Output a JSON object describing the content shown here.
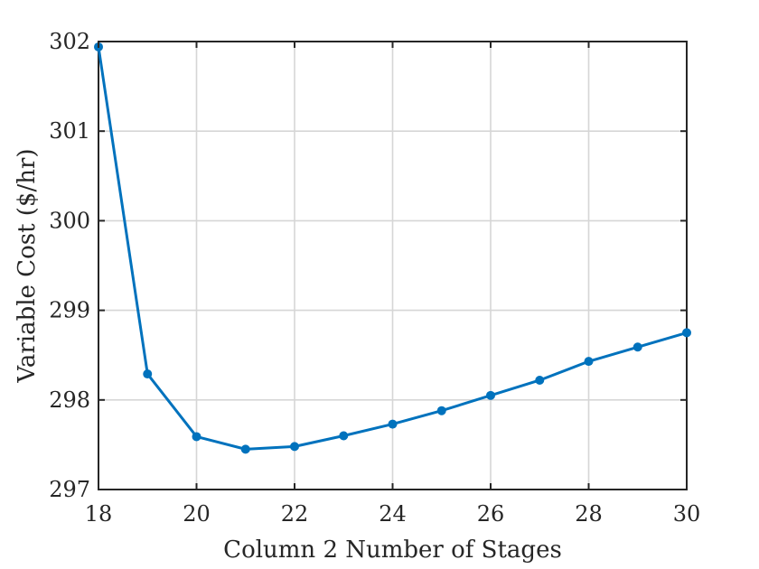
{
  "chart_data": {
    "type": "line",
    "title": "",
    "xlabel": "Column 2 Number of Stages",
    "ylabel": "Variable Cost ($/hr)",
    "xlim": [
      18,
      30
    ],
    "ylim": [
      297,
      302
    ],
    "xticks": [
      18,
      20,
      22,
      24,
      26,
      28,
      30
    ],
    "yticks": [
      297,
      298,
      299,
      300,
      301,
      302
    ],
    "grid": true,
    "legend": "none",
    "series": [
      {
        "x": [
          18,
          19,
          20,
          21,
          22,
          23,
          24,
          25,
          26,
          27,
          28,
          29,
          30
        ],
        "y": [
          301.94,
          298.29,
          297.59,
          297.45,
          297.48,
          297.6,
          297.73,
          297.88,
          298.05,
          298.22,
          298.43,
          298.59,
          298.75
        ],
        "color": "#0072BD"
      }
    ]
  }
}
